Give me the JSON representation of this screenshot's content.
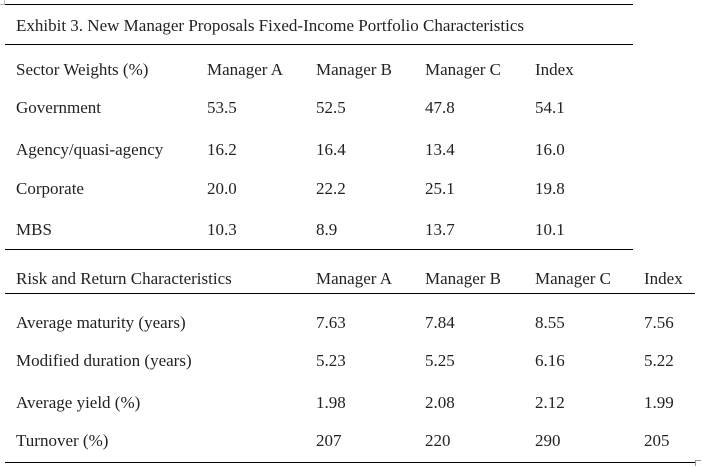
{
  "title": "Exhibit 3. New Manager Proposals Fixed-Income Portfolio Characteristics",
  "sector_table": {
    "headers": [
      "Sector Weights (%)",
      "Manager A",
      "Manager B",
      "Manager C",
      "Index"
    ],
    "rows": [
      [
        "Government",
        "53.5",
        "52.5",
        "47.8",
        "54.1"
      ],
      [
        "Agency/quasi-agency",
        "16.2",
        "16.4",
        "13.4",
        "16.0"
      ],
      [
        "Corporate",
        "20.0",
        "22.2",
        "25.1",
        "19.8"
      ],
      [
        "MBS",
        "10.3",
        "8.9",
        "13.7",
        "10.1"
      ]
    ]
  },
  "risk_table": {
    "headers": [
      "Risk and Return Characteristics",
      "Manager A",
      "Manager B",
      "Manager C",
      "Index"
    ],
    "rows": [
      [
        "Average maturity (years)",
        "7.63",
        "7.84",
        "8.55",
        "7.56"
      ],
      [
        "Modified duration (years)",
        "5.23",
        "5.25",
        "6.16",
        "5.22"
      ],
      [
        "Average yield (%)",
        "1.98",
        "2.08",
        "2.12",
        "1.99"
      ],
      [
        "Turnover (%)",
        "207",
        "220",
        "290",
        "205"
      ]
    ]
  }
}
